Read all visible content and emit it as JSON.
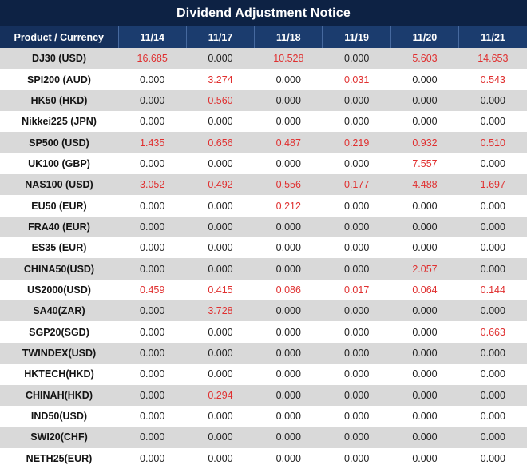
{
  "title": "Dividend Adjustment Notice",
  "colors": {
    "title_bg": "#0d2244",
    "header_bg": "#1b3c6e",
    "alt_row_bg": "#d9d9d9",
    "value_red": "#e03030"
  },
  "chart_data": {
    "type": "table",
    "title": "Dividend Adjustment Notice",
    "highlight_rule": "non-zero dividend values rendered in red",
    "columns": [
      "Product / Currency",
      "11/14",
      "11/17",
      "11/18",
      "11/19",
      "11/20",
      "11/21"
    ],
    "rows": [
      [
        "DJ30 (USD)",
        "16.685",
        "0.000",
        "10.528",
        "0.000",
        "5.603",
        "14.653"
      ],
      [
        "SPI200 (AUD)",
        "0.000",
        "3.274",
        "0.000",
        "0.031",
        "0.000",
        "0.543"
      ],
      [
        "HK50 (HKD)",
        "0.000",
        "0.560",
        "0.000",
        "0.000",
        "0.000",
        "0.000"
      ],
      [
        "Nikkei225 (JPN)",
        "0.000",
        "0.000",
        "0.000",
        "0.000",
        "0.000",
        "0.000"
      ],
      [
        "SP500 (USD)",
        "1.435",
        "0.656",
        "0.487",
        "0.219",
        "0.932",
        "0.510"
      ],
      [
        "UK100 (GBP)",
        "0.000",
        "0.000",
        "0.000",
        "0.000",
        "7.557",
        "0.000"
      ],
      [
        "NAS100 (USD)",
        "3.052",
        "0.492",
        "0.556",
        "0.177",
        "4.488",
        "1.697"
      ],
      [
        "EU50 (EUR)",
        "0.000",
        "0.000",
        "0.212",
        "0.000",
        "0.000",
        "0.000"
      ],
      [
        "FRA40 (EUR)",
        "0.000",
        "0.000",
        "0.000",
        "0.000",
        "0.000",
        "0.000"
      ],
      [
        "ES35 (EUR)",
        "0.000",
        "0.000",
        "0.000",
        "0.000",
        "0.000",
        "0.000"
      ],
      [
        "CHINA50(USD)",
        "0.000",
        "0.000",
        "0.000",
        "0.000",
        "2.057",
        "0.000"
      ],
      [
        "US2000(USD)",
        "0.459",
        "0.415",
        "0.086",
        "0.017",
        "0.064",
        "0.144"
      ],
      [
        "SA40(ZAR)",
        "0.000",
        "3.728",
        "0.000",
        "0.000",
        "0.000",
        "0.000"
      ],
      [
        "SGP20(SGD)",
        "0.000",
        "0.000",
        "0.000",
        "0.000",
        "0.000",
        "0.663"
      ],
      [
        "TWINDEX(USD)",
        "0.000",
        "0.000",
        "0.000",
        "0.000",
        "0.000",
        "0.000"
      ],
      [
        "HKTECH(HKD)",
        "0.000",
        "0.000",
        "0.000",
        "0.000",
        "0.000",
        "0.000"
      ],
      [
        "CHINAH(HKD)",
        "0.000",
        "0.294",
        "0.000",
        "0.000",
        "0.000",
        "0.000"
      ],
      [
        "IND50(USD)",
        "0.000",
        "0.000",
        "0.000",
        "0.000",
        "0.000",
        "0.000"
      ],
      [
        "SWI20(CHF)",
        "0.000",
        "0.000",
        "0.000",
        "0.000",
        "0.000",
        "0.000"
      ],
      [
        "NETH25(EUR)",
        "0.000",
        "0.000",
        "0.000",
        "0.000",
        "0.000",
        "0.000"
      ]
    ]
  }
}
